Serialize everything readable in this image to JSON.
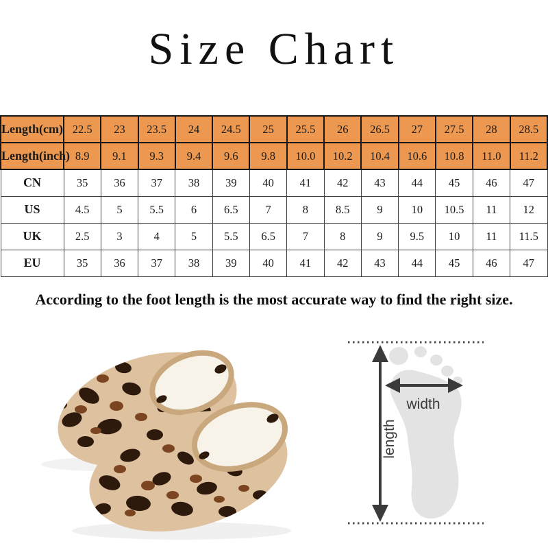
{
  "page": {
    "title": "Size Chart",
    "note": "According to the foot length is the most  accurate way to find the right size."
  },
  "chart_data": {
    "type": "table",
    "title": "Size Chart",
    "rows": [
      {
        "label": "Length(cm)",
        "header": true,
        "values": [
          "22.5",
          "23",
          "23.5",
          "24",
          "24.5",
          "25",
          "25.5",
          "26",
          "26.5",
          "27",
          "27.5",
          "28",
          "28.5"
        ]
      },
      {
        "label": "Length(inch)",
        "header": true,
        "values": [
          "8.9",
          "9.1",
          "9.3",
          "9.4",
          "9.6",
          "9.8",
          "10.0",
          "10.2",
          "10.4",
          "10.6",
          "10.8",
          "11.0",
          "11.2"
        ]
      },
      {
        "label": "CN",
        "header": false,
        "values": [
          "35",
          "36",
          "37",
          "38",
          "39",
          "40",
          "41",
          "42",
          "43",
          "44",
          "45",
          "46",
          "47"
        ]
      },
      {
        "label": "US",
        "header": false,
        "values": [
          "4.5",
          "5",
          "5.5",
          "6",
          "6.5",
          "7",
          "8",
          "8.5",
          "9",
          "10",
          "10.5",
          "11",
          "12"
        ]
      },
      {
        "label": "UK",
        "header": false,
        "values": [
          "2.5",
          "3",
          "4",
          "5",
          "5.5",
          "6.5",
          "7",
          "8",
          "9",
          "9.5",
          "10",
          "11",
          "11.5"
        ]
      },
      {
        "label": "EU",
        "header": false,
        "values": [
          "35",
          "36",
          "37",
          "38",
          "39",
          "40",
          "41",
          "42",
          "43",
          "44",
          "45",
          "46",
          "47"
        ]
      }
    ],
    "layout_hints": {
      "header_rows_background": "#EC9851",
      "grid": "on"
    }
  },
  "diagram": {
    "width_label": "width",
    "length_label": "length"
  },
  "graphics": {
    "slippers": "leopard-plush-slippers-photo",
    "foot": "foot-measurement-diagram"
  },
  "colors": {
    "header_bg": "#EC9851",
    "border_dark": "#161616",
    "border_light": "#3f3f3f",
    "arrow": "#3b3b3b",
    "foot_fill": "#e3e3e3",
    "slipper_base": "#DEC19E",
    "spot_dark": "#2E1A0C",
    "spot_rust": "#7A4520",
    "lining": "#F7F3E9"
  }
}
